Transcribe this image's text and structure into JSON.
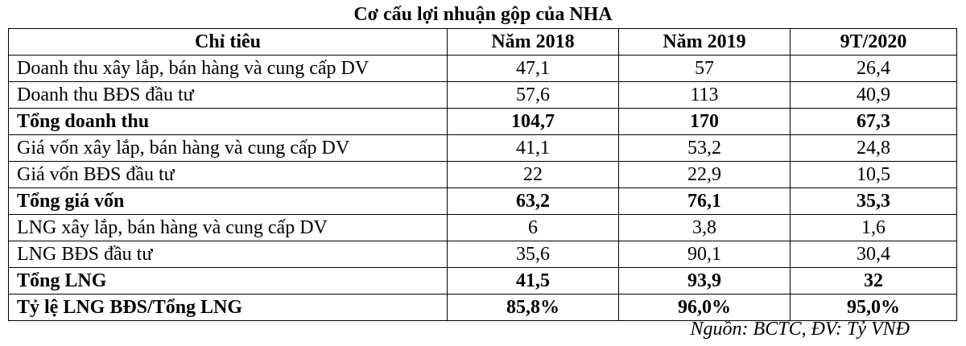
{
  "title": "Cơ cấu lợi nhuận gộp của NHA",
  "table": {
    "headers": [
      "Chỉ tiêu",
      "Năm 2018",
      "Năm 2019",
      "9T/2020"
    ],
    "rows": [
      {
        "label": "Doanh thu xây lắp, bán hàng và cung cấp DV",
        "values": [
          "47,1",
          "57",
          "26,4"
        ],
        "bold": false
      },
      {
        "label": "Doanh thu BĐS đầu tư",
        "values": [
          "57,6",
          "113",
          "40,9"
        ],
        "bold": false
      },
      {
        "label": "Tổng doanh thu",
        "values": [
          "104,7",
          "170",
          "67,3"
        ],
        "bold": true
      },
      {
        "label": "Giá vốn xây lắp, bán hàng và cung cấp DV",
        "values": [
          "41,1",
          "53,2",
          "24,8"
        ],
        "bold": false
      },
      {
        "label": "Giá vốn BĐS đầu tư",
        "values": [
          "22",
          "22,9",
          "10,5"
        ],
        "bold": false
      },
      {
        "label": "Tổng giá vốn",
        "values": [
          "63,2",
          "76,1",
          "35,3"
        ],
        "bold": true
      },
      {
        "label": "LNG xây lắp, bán hàng và cung cấp DV",
        "values": [
          "6",
          "3,8",
          "1,6"
        ],
        "bold": false
      },
      {
        "label": "LNG BĐS đầu tư",
        "values": [
          "35,6",
          "90,1",
          "30,4"
        ],
        "bold": false
      },
      {
        "label": "Tổng LNG",
        "values": [
          "41,5",
          "93,9",
          "32"
        ],
        "bold": true
      },
      {
        "label": "Tỷ lệ LNG BĐS/Tổng LNG",
        "values": [
          "85,8%",
          "96,0%",
          "95,0%"
        ],
        "bold": true
      }
    ]
  },
  "source_note": "Nguồn: BCTC, ĐV: Tỷ VNĐ"
}
